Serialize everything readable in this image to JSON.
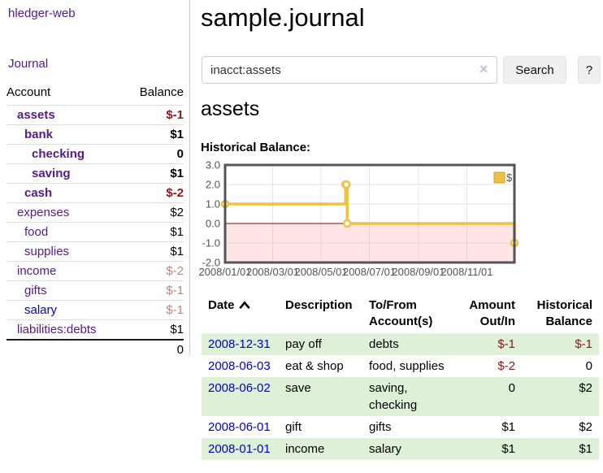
{
  "app": {
    "brand": "hledger-web",
    "nav_journal": "Journal"
  },
  "sidebar": {
    "columns": [
      "Account",
      "Balance"
    ],
    "accounts": [
      {
        "name": "assets",
        "balance": "$-1",
        "depth": 1,
        "bold": true,
        "neg": "strong",
        "link": "purple"
      },
      {
        "name": "bank",
        "balance": "$1",
        "depth": 2,
        "bold": true,
        "neg": "none",
        "link": "purple"
      },
      {
        "name": "checking",
        "balance": "0",
        "depth": 3,
        "bold": true,
        "neg": "none",
        "link": "purple"
      },
      {
        "name": "saving",
        "balance": "$1",
        "depth": 3,
        "bold": true,
        "neg": "none",
        "link": "purple"
      },
      {
        "name": "cash",
        "balance": "$-2",
        "depth": 2,
        "bold": true,
        "neg": "strong",
        "link": "purple"
      },
      {
        "name": "expenses",
        "balance": "$2",
        "depth": 1,
        "bold": false,
        "neg": "none",
        "link": "purple"
      },
      {
        "name": "food",
        "balance": "$1",
        "depth": 2,
        "bold": false,
        "neg": "none",
        "link": "purple"
      },
      {
        "name": "supplies",
        "balance": "$1",
        "depth": 2,
        "bold": false,
        "neg": "none",
        "link": "purple"
      },
      {
        "name": "income",
        "balance": "$-2",
        "depth": 1,
        "bold": false,
        "neg": "soft",
        "link": "purple"
      },
      {
        "name": "gifts",
        "balance": "$-1",
        "depth": 2,
        "bold": false,
        "neg": "soft",
        "link": "purple"
      },
      {
        "name": "salary",
        "balance": "$-1",
        "depth": 2,
        "bold": false,
        "neg": "soft",
        "link": "blue"
      },
      {
        "name": "liabilities:debts",
        "balance": "$1",
        "depth": 1,
        "bold": false,
        "neg": "none",
        "link": "purple"
      }
    ],
    "total": "0"
  },
  "header": {
    "title": "sample.journal"
  },
  "search": {
    "value": "inacct:assets",
    "clear_icon": "×",
    "button": "Search",
    "help_button": "?"
  },
  "account_page": {
    "title": "assets",
    "chart_label": "Historical Balance:"
  },
  "chart_data": {
    "type": "line",
    "step": true,
    "title": "Historical Balance:",
    "legend": {
      "position": "top-right",
      "entries": [
        "$"
      ]
    },
    "series": [
      {
        "name": "$",
        "color": "#edc240",
        "points": [
          [
            "2008-01-01",
            1
          ],
          [
            "2008-06-01",
            2
          ],
          [
            "2008-06-02",
            2
          ],
          [
            "2008-06-03",
            0
          ],
          [
            "2008-12-31",
            -1
          ]
        ]
      }
    ],
    "xlim": [
      "2008-01-01",
      "2008-12-31"
    ],
    "ylim": [
      -2,
      3
    ],
    "x_ticks": [
      "2008/01/01",
      "2008/03/01",
      "2008/05/01",
      "2008/07/01",
      "2008/09/01",
      "2008/11/01"
    ],
    "y_ticks": [
      "3.0",
      "2.0",
      "1.0",
      "0.0",
      "-1.0",
      "-2.0"
    ],
    "grid": true,
    "negative_region": {
      "below": 0
    },
    "xlabel": "",
    "ylabel": ""
  },
  "register": {
    "columns": [
      "Date",
      "Description",
      "To/From Account(s)",
      "Amount Out/In",
      "Historical Balance"
    ],
    "sort": {
      "column": "Date",
      "direction": "ascending"
    },
    "rows": [
      {
        "date": "2008-12-31",
        "description": "pay off",
        "accounts": "debts",
        "amount": "$-1",
        "balance": "$-1"
      },
      {
        "date": "2008-06-03",
        "description": "eat & shop",
        "accounts": "food, supplies",
        "amount": "$-2",
        "balance": "0"
      },
      {
        "date": "2008-06-02",
        "description": "save",
        "accounts": "saving, checking",
        "amount": "0",
        "balance": "$2"
      },
      {
        "date": "2008-06-01",
        "description": "gift",
        "accounts": "gifts",
        "amount": "$1",
        "balance": "$2"
      },
      {
        "date": "2008-01-01",
        "description": "income",
        "accounts": "salary",
        "amount": "$1",
        "balance": "$1"
      }
    ]
  },
  "colors": {
    "purple": "#551a8b",
    "link_blue": "#0000cc",
    "neg_strong": "#8b1a1a",
    "neg_muted": "#c08383",
    "row_green": "#dff0d8",
    "button_bg": "#efefef",
    "border_gray": "#cccccc",
    "chart_yellow": "#edc240",
    "chart_border": "#545454",
    "zero_line": "#8b0000",
    "grid_line": "#e6e6e6",
    "neg_region": "rgba(255,68,68,0.14)",
    "tick_text": "#545454",
    "clear_icon": "#c9c0dc"
  }
}
